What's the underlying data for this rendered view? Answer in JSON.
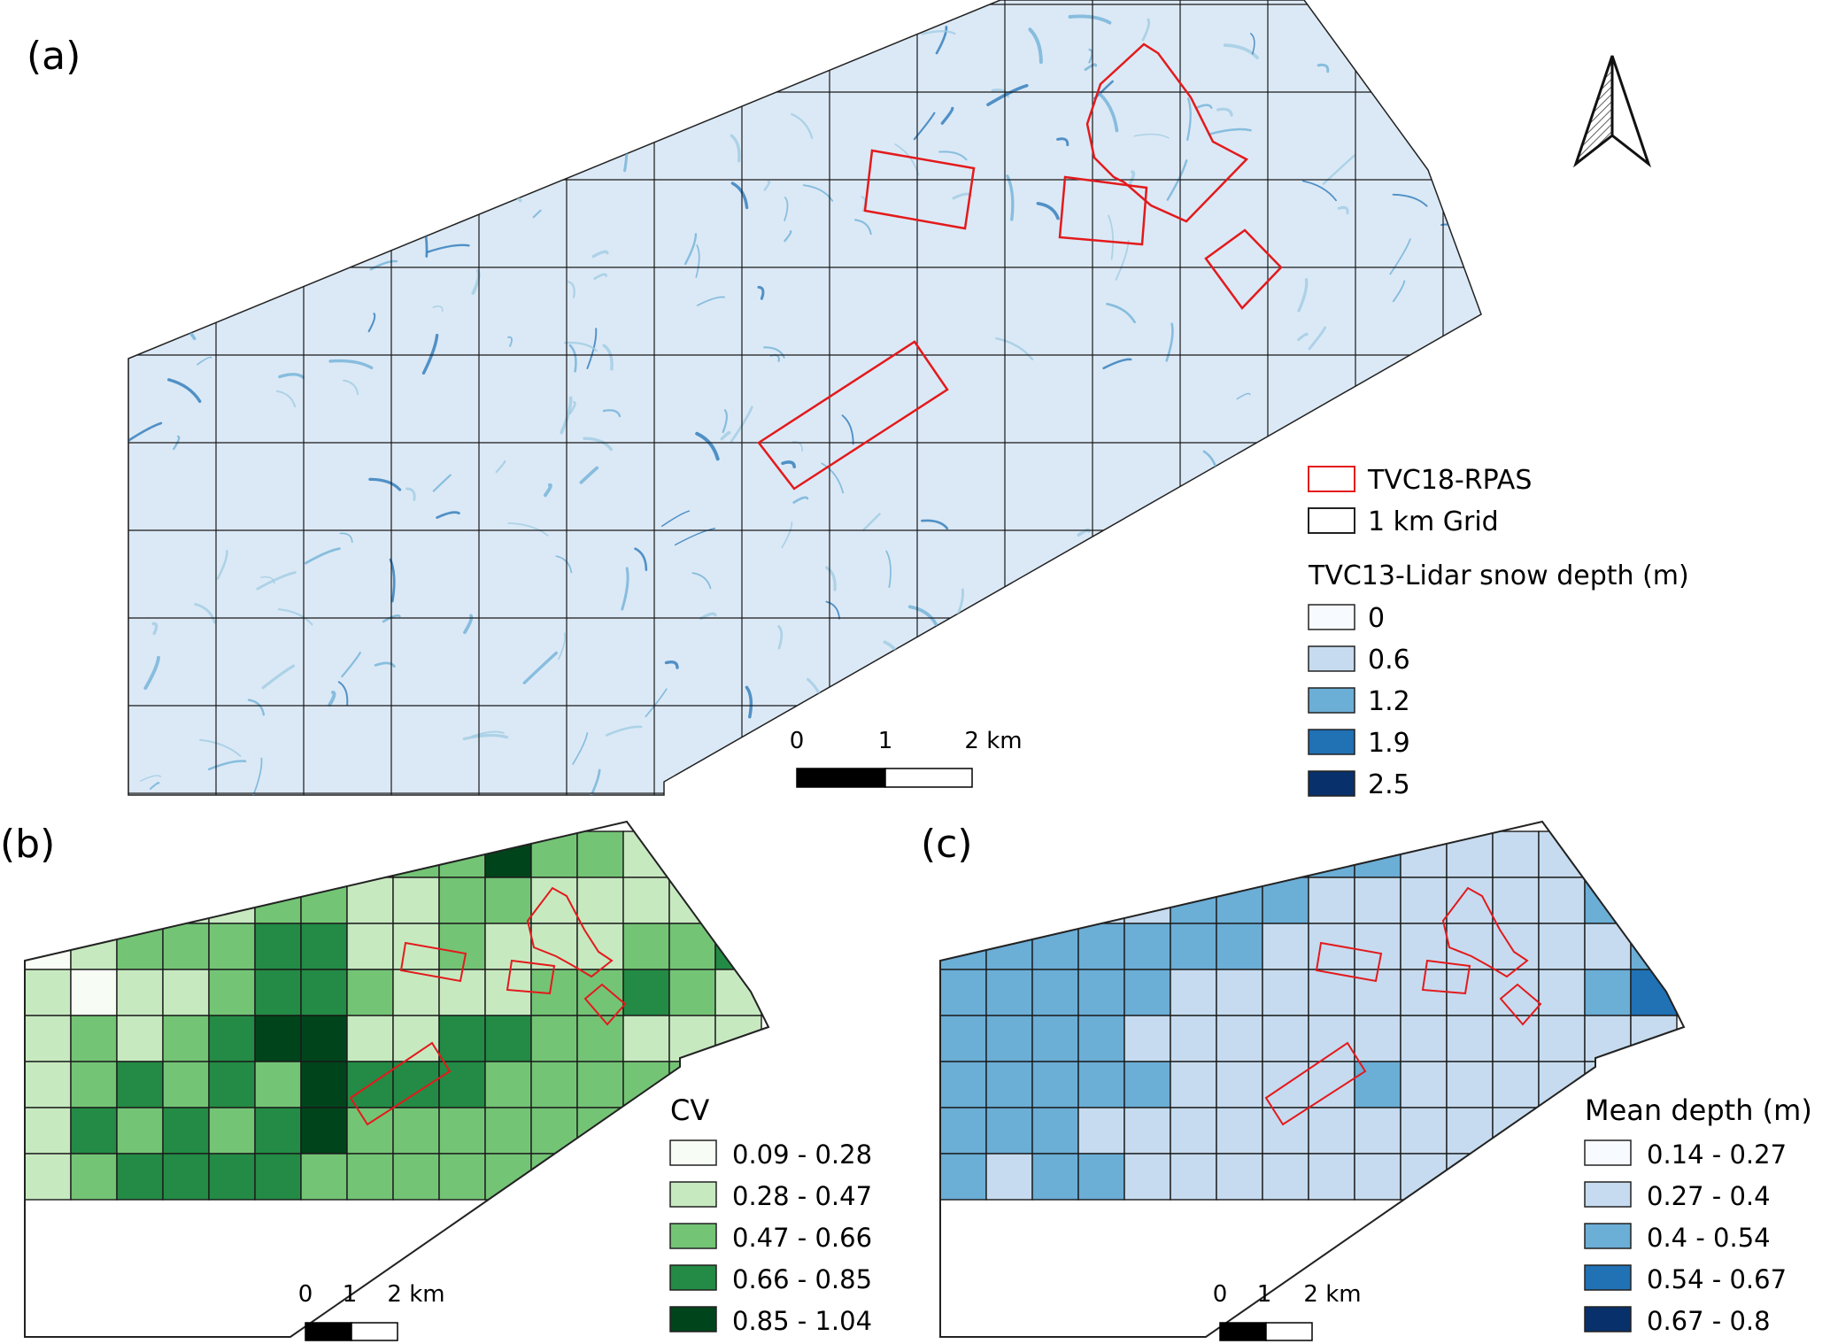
{
  "panels": {
    "a": {
      "label": "(a)"
    },
    "b": {
      "label": "(b)"
    },
    "c": {
      "label": "(c)"
    }
  },
  "legend_a": {
    "rpas_label": "TVC18-RPAS",
    "grid_label": "1 km Grid",
    "snow_title": "TVC13-Lidar snow depth (m)",
    "snow_items": [
      {
        "label": "0",
        "color": "#f7fbff"
      },
      {
        "label": "0.6",
        "color": "#c6dbef"
      },
      {
        "label": "1.2",
        "color": "#6baed6"
      },
      {
        "label": "1.9",
        "color": "#2171b5"
      },
      {
        "label": "2.5",
        "color": "#08306b"
      }
    ],
    "rpas_color": "#e31a1c"
  },
  "legend_b": {
    "title": "CV",
    "items": [
      {
        "label": "0.09 - 0.28",
        "color": "#f7fcf5"
      },
      {
        "label": "0.28 - 0.47",
        "color": "#c7e9c0"
      },
      {
        "label": "0.47 - 0.66",
        "color": "#74c476"
      },
      {
        "label": "0.66 - 0.85",
        "color": "#238b45"
      },
      {
        "label": "0.85 - 1.04",
        "color": "#00441b"
      }
    ]
  },
  "legend_c": {
    "title": "Mean depth (m)",
    "items": [
      {
        "label": "0.14 - 0.27",
        "color": "#f7fbff"
      },
      {
        "label": "0.27 - 0.4",
        "color": "#c6dbef"
      },
      {
        "label": "0.4 - 0.54",
        "color": "#6baed6"
      },
      {
        "label": "0.54 - 0.67",
        "color": "#2171b5"
      },
      {
        "label": "0.67 - 0.8",
        "color": "#08306b"
      }
    ]
  },
  "scalebar": {
    "labels": [
      "0",
      "1",
      "2 km"
    ]
  },
  "north_arrow": {
    "icon": "north-arrow-icon"
  }
}
